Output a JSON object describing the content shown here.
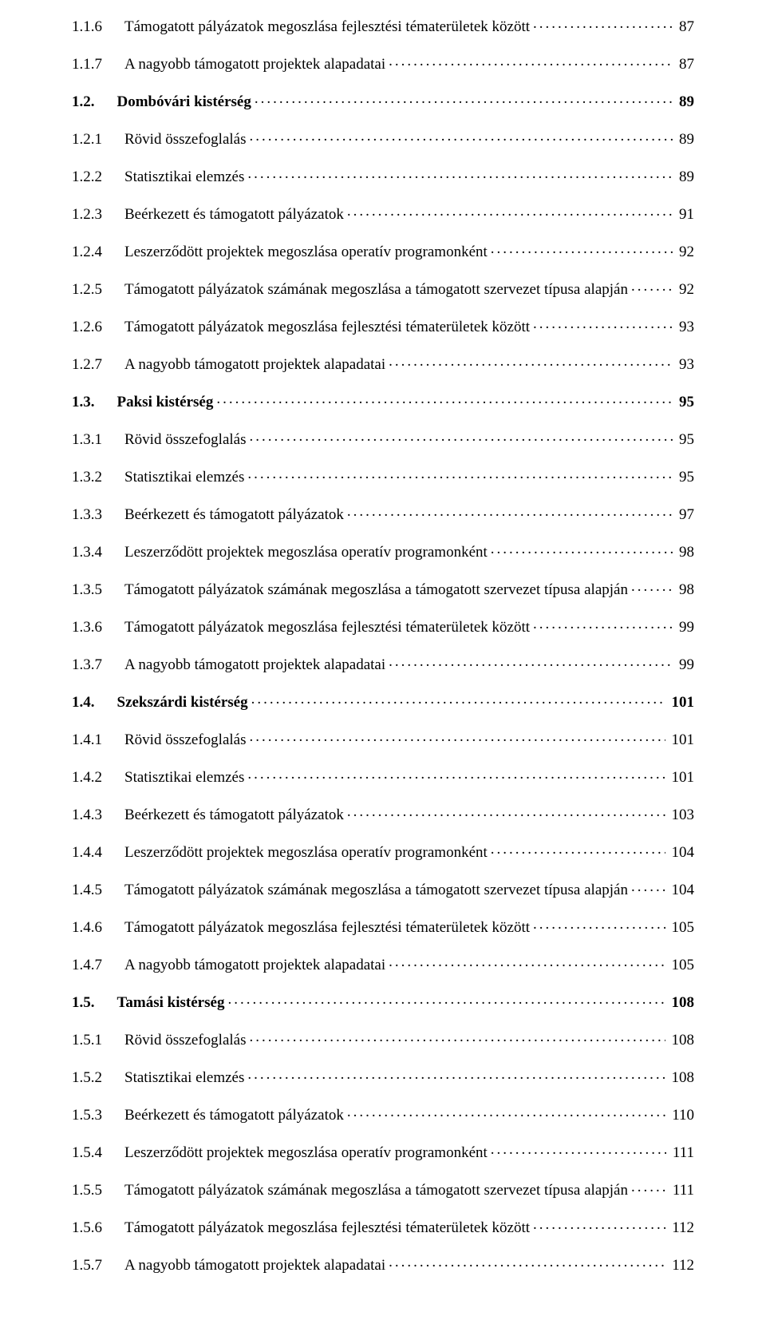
{
  "toc": [
    {
      "num": "1.1.6",
      "title": "Támogatott pályázatok megoszlása fejlesztési tématerületek között",
      "page": "87",
      "bold": false
    },
    {
      "num": "1.1.7",
      "title": "A nagyobb támogatott projektek alapadatai",
      "page": "87",
      "bold": false
    },
    {
      "num": "1.2.",
      "title": "Dombóvári kistérség",
      "page": "89",
      "bold": true
    },
    {
      "num": "1.2.1",
      "title": "Rövid összefoglalás",
      "page": "89",
      "bold": false
    },
    {
      "num": "1.2.2",
      "title": "Statisztikai elemzés",
      "page": "89",
      "bold": false
    },
    {
      "num": "1.2.3",
      "title": "Beérkezett és támogatott pályázatok",
      "page": "91",
      "bold": false
    },
    {
      "num": "1.2.4",
      "title": "Leszerződött projektek megoszlása operatív programonként",
      "page": "92",
      "bold": false
    },
    {
      "num": "1.2.5",
      "title": "Támogatott pályázatok számának megoszlása a támogatott szervezet típusa alapján",
      "page": "92",
      "bold": false
    },
    {
      "num": "1.2.6",
      "title": "Támogatott pályázatok megoszlása fejlesztési tématerületek között",
      "page": "93",
      "bold": false
    },
    {
      "num": "1.2.7",
      "title": "A nagyobb támogatott projektek alapadatai",
      "page": "93",
      "bold": false
    },
    {
      "num": "1.3.",
      "title": "Paksi kistérség",
      "page": "95",
      "bold": true
    },
    {
      "num": "1.3.1",
      "title": "Rövid összefoglalás",
      "page": "95",
      "bold": false
    },
    {
      "num": "1.3.2",
      "title": "Statisztikai elemzés",
      "page": "95",
      "bold": false
    },
    {
      "num": "1.3.3",
      "title": "Beérkezett és támogatott pályázatok",
      "page": "97",
      "bold": false
    },
    {
      "num": "1.3.4",
      "title": "Leszerződött projektek megoszlása operatív programonként",
      "page": "98",
      "bold": false
    },
    {
      "num": "1.3.5",
      "title": "Támogatott pályázatok számának megoszlása a támogatott szervezet típusa alapján",
      "page": "98",
      "bold": false
    },
    {
      "num": "1.3.6",
      "title": "Támogatott pályázatok megoszlása fejlesztési tématerületek között",
      "page": "99",
      "bold": false
    },
    {
      "num": "1.3.7",
      "title": "A nagyobb támogatott projektek alapadatai",
      "page": "99",
      "bold": false
    },
    {
      "num": "1.4.",
      "title": "Szekszárdi kistérség",
      "page": "101",
      "bold": true
    },
    {
      "num": "1.4.1",
      "title": "Rövid összefoglalás",
      "page": "101",
      "bold": false
    },
    {
      "num": "1.4.2",
      "title": "Statisztikai elemzés",
      "page": "101",
      "bold": false
    },
    {
      "num": "1.4.3",
      "title": "Beérkezett és támogatott pályázatok",
      "page": "103",
      "bold": false
    },
    {
      "num": "1.4.4",
      "title": "Leszerződött projektek megoszlása operatív programonként",
      "page": "104",
      "bold": false
    },
    {
      "num": "1.4.5",
      "title": "Támogatott pályázatok számának megoszlása a támogatott szervezet típusa alapján",
      "page": "104",
      "bold": false
    },
    {
      "num": "1.4.6",
      "title": "Támogatott pályázatok megoszlása fejlesztési tématerületek között",
      "page": "105",
      "bold": false
    },
    {
      "num": "1.4.7",
      "title": "A nagyobb támogatott projektek alapadatai",
      "page": "105",
      "bold": false
    },
    {
      "num": "1.5.",
      "title": "Tamási kistérség",
      "page": "108",
      "bold": true
    },
    {
      "num": "1.5.1",
      "title": "Rövid összefoglalás",
      "page": "108",
      "bold": false
    },
    {
      "num": "1.5.2",
      "title": "Statisztikai elemzés",
      "page": "108",
      "bold": false
    },
    {
      "num": "1.5.3",
      "title": "Beérkezett és támogatott pályázatok",
      "page": "110",
      "bold": false
    },
    {
      "num": "1.5.4",
      "title": "Leszerződött projektek megoszlása operatív programonként",
      "page": "111",
      "bold": false
    },
    {
      "num": "1.5.5",
      "title": "Támogatott pályázatok számának megoszlása a támogatott szervezet típusa alapján",
      "page": "111",
      "bold": false
    },
    {
      "num": "1.5.6",
      "title": "Támogatott pályázatok megoszlása fejlesztési tématerületek között",
      "page": "112",
      "bold": false
    },
    {
      "num": "1.5.7",
      "title": "A nagyobb támogatott projektek alapadatai",
      "page": "112",
      "bold": false
    }
  ]
}
